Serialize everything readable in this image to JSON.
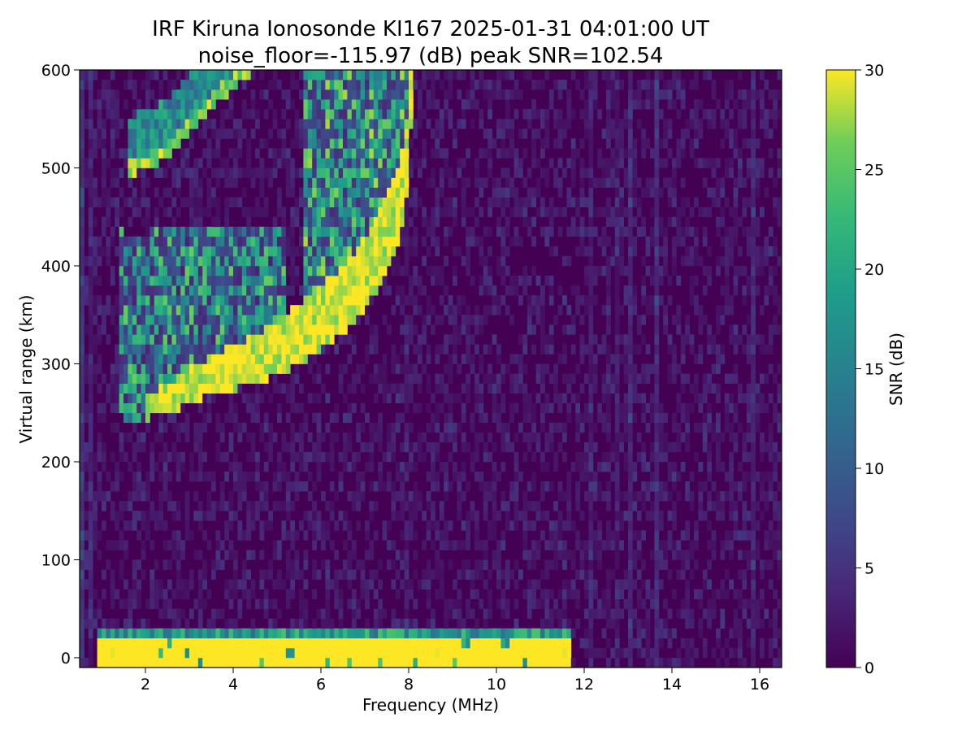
{
  "chart_data": {
    "type": "heatmap",
    "title": "IRF Kiruna Ionosonde KI167 2025-01-31 04:01:00  UT",
    "subtitle": "noise_floor=-115.97 (dB) peak SNR=102.54",
    "xlabel": "Frequency (MHz)",
    "ylabel": "Virtual range (km)",
    "xlim": [
      0.5,
      16.5
    ],
    "ylim": [
      -10,
      600
    ],
    "xticks": [
      2,
      4,
      6,
      8,
      10,
      12,
      14,
      16
    ],
    "yticks": [
      0,
      100,
      200,
      300,
      400,
      500,
      600
    ],
    "colorbar": {
      "label": "SNR (dB)",
      "range": [
        0,
        30
      ],
      "ticks": [
        0,
        5,
        10,
        15,
        20,
        25,
        30
      ],
      "colormap": "viridis"
    },
    "features": {
      "ground_band": {
        "freq_range": [
          0.9,
          11.7
        ],
        "range_km": [
          -10,
          35
        ],
        "snr": 30
      },
      "discrete_lines_mhz": [
        11.8,
        12.0,
        12.2,
        12.4,
        12.6,
        12.8,
        13.0,
        13.5,
        14.0,
        14.5,
        15.0,
        15.5,
        16.0
      ],
      "f_trace_lower_edge": [
        [
          1.4,
          250
        ],
        [
          1.7,
          240
        ],
        [
          2.5,
          250
        ],
        [
          3.5,
          268
        ],
        [
          4.5,
          280
        ],
        [
          5.5,
          300
        ],
        [
          6.5,
          330
        ],
        [
          7.0,
          355
        ],
        [
          7.5,
          390
        ],
        [
          7.8,
          430
        ],
        [
          8.0,
          480
        ],
        [
          8.1,
          600
        ]
      ],
      "multihop_trace": [
        [
          1.6,
          490
        ],
        [
          2.5,
          510
        ],
        [
          3.5,
          560
        ],
        [
          4.5,
          600
        ]
      ]
    }
  }
}
